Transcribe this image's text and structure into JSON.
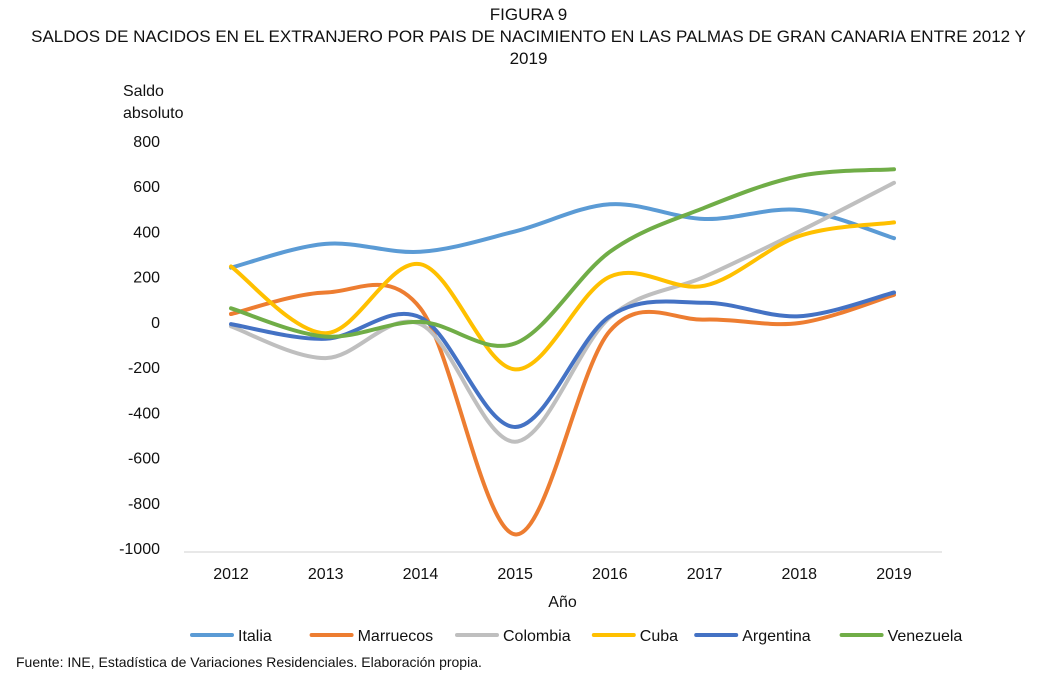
{
  "figure_label": "FIGURA 9",
  "source_note": "Fuente: INE, Estadística de Variaciones Residenciales. Elaboración propia.",
  "chart_data": {
    "type": "line",
    "title": "SALDOS DE NACIDOS EN EL EXTRANJERO POR PAIS DE NACIMIENTO EN LAS PALMAS DE GRAN CANARIA ENTRE 2012 Y 2019",
    "xlabel": "Año",
    "ylabel_lines": [
      "Saldo",
      "absoluto"
    ],
    "x": [
      2012,
      2013,
      2014,
      2015,
      2016,
      2017,
      2018,
      2019
    ],
    "ylim": [
      -1000,
      800
    ],
    "yticks": [
      800,
      600,
      400,
      200,
      0,
      -200,
      -400,
      -600,
      -800,
      -1000
    ],
    "grid": false,
    "legend_position": "bottom",
    "series": [
      {
        "name": "Italia",
        "color": "#5B9BD5",
        "values": [
          240,
          345,
          310,
          400,
          520,
          455,
          495,
          370
        ]
      },
      {
        "name": "Marruecos",
        "color": "#ED7D31",
        "values": [
          35,
          130,
          60,
          -940,
          -40,
          10,
          -5,
          120
        ]
      },
      {
        "name": "Colombia",
        "color": "#BFBFBF",
        "values": [
          -20,
          -160,
          -10,
          -530,
          20,
          200,
          400,
          615
        ]
      },
      {
        "name": "Cuba",
        "color": "#FFC000",
        "values": [
          245,
          -50,
          255,
          -210,
          200,
          160,
          380,
          440
        ]
      },
      {
        "name": "Argentina",
        "color": "#4472C4",
        "values": [
          -10,
          -75,
          20,
          -465,
          25,
          85,
          25,
          130
        ]
      },
      {
        "name": "Venezuela",
        "color": "#70AD47",
        "values": [
          60,
          -65,
          0,
          -95,
          310,
          505,
          645,
          675
        ]
      }
    ]
  }
}
